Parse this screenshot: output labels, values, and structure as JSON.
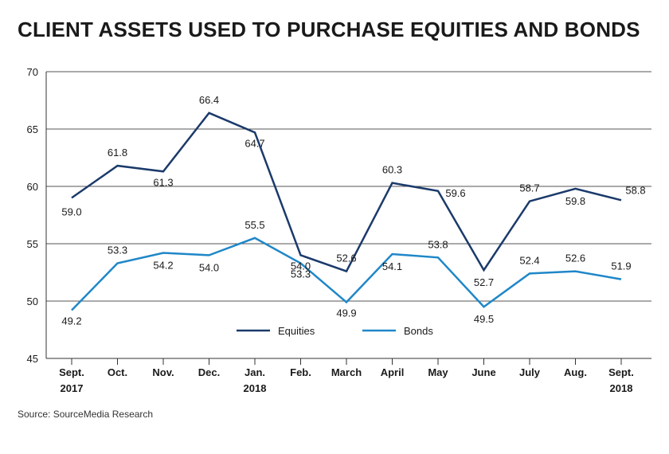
{
  "title": "CLIENT ASSETS USED TO PURCHASE EQUITIES AND BONDS",
  "source": "Source: SourceMedia Research",
  "chart_data": {
    "type": "line",
    "x": [
      "Sept. 2017",
      "Oct.",
      "Nov.",
      "Dec.",
      "Jan. 2018",
      "Feb.",
      "March",
      "April",
      "May",
      "June",
      "July",
      "Aug.",
      "Sept. 2018"
    ],
    "x_tick_lines": [
      [
        "Sept.",
        "2017"
      ],
      [
        "Oct."
      ],
      [
        "Nov."
      ],
      [
        "Dec."
      ],
      [
        "Jan.",
        "2018"
      ],
      [
        "Feb."
      ],
      [
        "March"
      ],
      [
        "April"
      ],
      [
        "May"
      ],
      [
        "June"
      ],
      [
        "July"
      ],
      [
        "Aug."
      ],
      [
        "Sept.",
        "2018"
      ]
    ],
    "y_ticks": [
      45,
      50,
      55,
      60,
      65,
      70
    ],
    "ylim": [
      45,
      70
    ],
    "grid": true,
    "legend_position": "bottom-center",
    "series": [
      {
        "name": "Equities",
        "color": "#1b3a6b",
        "values": [
          59.0,
          61.8,
          61.3,
          66.4,
          64.7,
          54.0,
          52.6,
          60.3,
          59.6,
          52.7,
          58.7,
          59.8,
          58.8
        ],
        "labels": [
          "59.0",
          "61.8",
          "61.3",
          "66.4",
          "64.7",
          "54.0",
          "52.6",
          "60.3",
          "59.6",
          "52.7",
          "58.7",
          "59.8",
          "58.8"
        ]
      },
      {
        "name": "Bonds",
        "color": "#1f87c8",
        "values": [
          49.2,
          53.3,
          54.2,
          54.0,
          55.5,
          53.3,
          49.9,
          54.1,
          53.8,
          49.5,
          52.4,
          52.6,
          51.9
        ],
        "labels": [
          "49.2",
          "53.3",
          "54.2",
          "54.0",
          "55.5",
          "53.3",
          "49.9",
          "54.1",
          "53.8",
          "49.5",
          "52.4",
          "52.6",
          "51.9"
        ]
      }
    ]
  }
}
